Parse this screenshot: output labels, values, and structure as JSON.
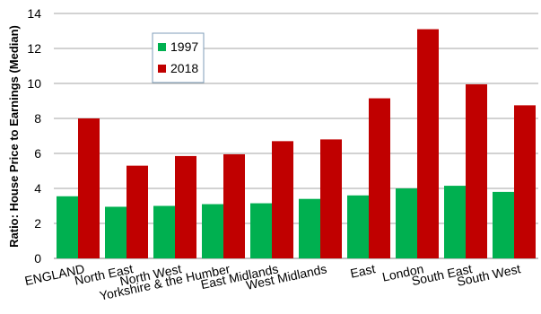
{
  "chart_data": {
    "type": "bar",
    "title": "",
    "xlabel": "",
    "ylabel": "Ratio: House Price to Earnings (Median)",
    "ylim": [
      0,
      14
    ],
    "yticks": [
      0,
      2,
      4,
      6,
      8,
      10,
      12,
      14
    ],
    "grid": true,
    "legend_position": "top-left",
    "categories": [
      "ENGLAND",
      "North East",
      "North West",
      "Yorkshire & the Humber",
      "East Midlands",
      "West Midlands",
      "East",
      "London",
      "South East",
      "South West"
    ],
    "series": [
      {
        "name": "1997",
        "color": "#00b050",
        "values": [
          3.55,
          2.95,
          3.0,
          3.1,
          3.15,
          3.4,
          3.6,
          4.0,
          4.15,
          3.8
        ]
      },
      {
        "name": "2018",
        "color": "#c00000",
        "values": [
          8.0,
          5.3,
          5.85,
          5.95,
          6.7,
          6.8,
          9.15,
          13.1,
          9.95,
          8.75
        ]
      }
    ]
  }
}
